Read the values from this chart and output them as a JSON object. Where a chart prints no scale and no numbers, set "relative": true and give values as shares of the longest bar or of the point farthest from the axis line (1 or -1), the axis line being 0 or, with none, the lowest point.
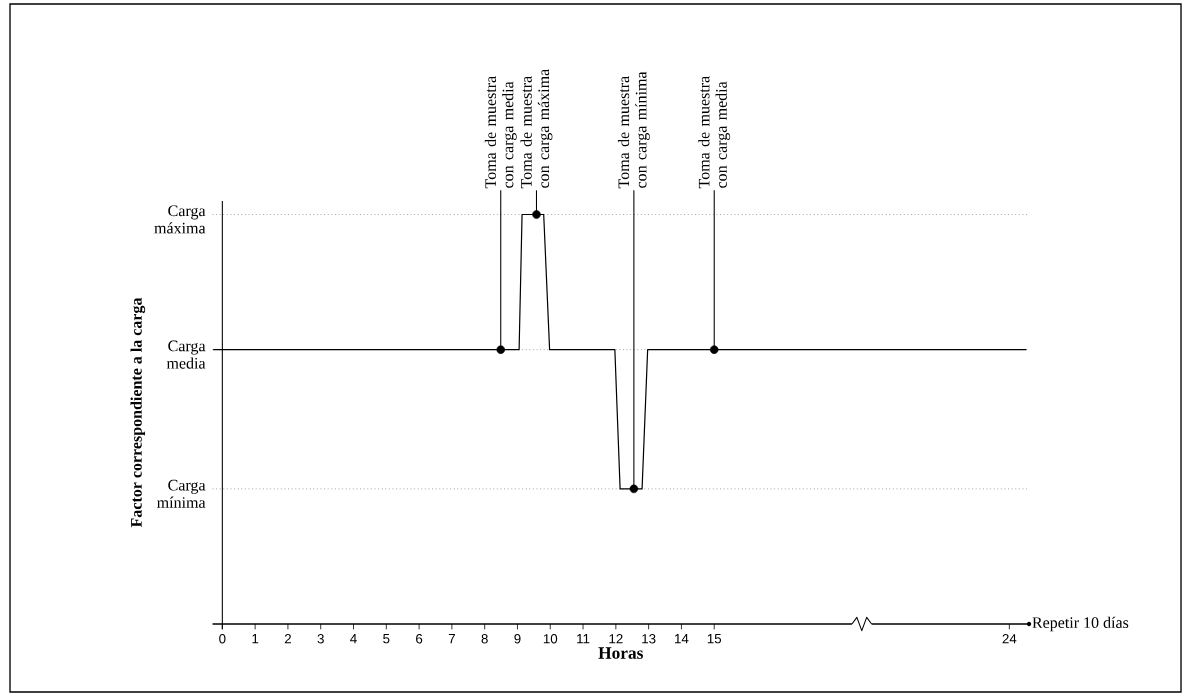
{
  "chart_data": {
    "type": "line",
    "relative": true,
    "xlabel": "Horas",
    "ylabel": "Factor correspondiente a la carga",
    "xlim": [
      -0.3,
      24.6
    ],
    "xticks": [
      0,
      1,
      2,
      3,
      4,
      5,
      6,
      7,
      8,
      9,
      10,
      11,
      12,
      13,
      14,
      15,
      24
    ],
    "ref_lines": [
      {
        "axis": "y",
        "value": 1,
        "label": "Carga máxima",
        "line_style": "dotted",
        "color": "#999999"
      },
      {
        "axis": "y",
        "value": 0.67,
        "label": "Carga media",
        "line_style": "dotted",
        "color": "#999999"
      },
      {
        "axis": "y",
        "value": 0.33,
        "label": "Carga mínima",
        "line_style": "dotted",
        "color": "#999999"
      }
    ],
    "series": [
      {
        "color": "#000000",
        "x": [
          -0.28,
          9.05,
          9.14,
          9.8,
          9.98,
          11.97,
          12.13,
          12.8,
          12.97,
          24.52
        ],
        "values": [
          0.67,
          0.67,
          1,
          1,
          0.67,
          0.67,
          0.33,
          0.33,
          0.67,
          0.67
        ]
      },
      {
        "type": "scatter",
        "color": "#000000",
        "marker": "circle",
        "x": [
          8.49,
          9.58,
          12.55,
          15
        ],
        "values": [
          0.67,
          1,
          0.33,
          0.67
        ]
      }
    ],
    "annotations": [
      {
        "text": "Toma de muestra con carga media",
        "x": 8.49,
        "y": 0.67
      },
      {
        "text": "Toma de muestra con carga máxima",
        "x": 9.58,
        "y": 1
      },
      {
        "text": "Toma de muestra con carga mínima",
        "x": 12.55,
        "y": 0.33
      },
      {
        "text": "Toma de muestra con carga media",
        "x": 15,
        "y": 0.67
      },
      "Repetir 10 días"
    ]
  }
}
